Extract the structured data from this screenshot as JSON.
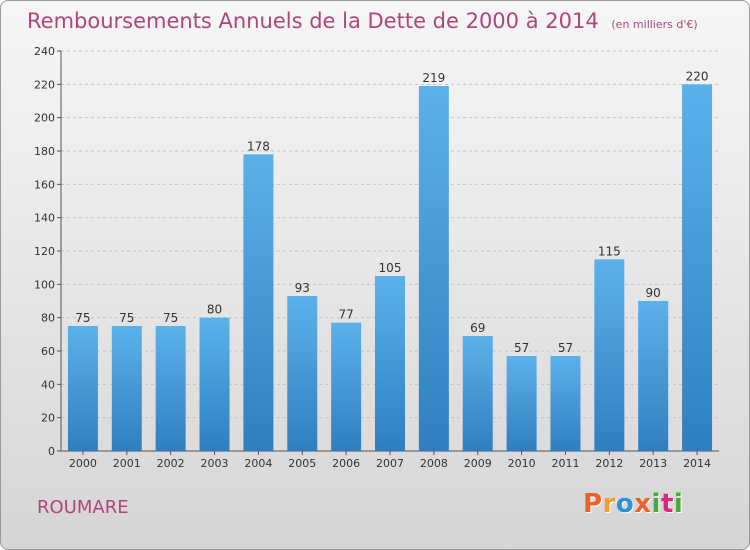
{
  "header": {
    "title": "Remboursements Annuels de la Dette de 2000 à 2014",
    "unit": "(en milliers d'€)"
  },
  "footer": {
    "location": "ROUMARE",
    "logo_text": "Proxiti"
  },
  "chart_data": {
    "type": "bar",
    "categories": [
      "2000",
      "2001",
      "2002",
      "2003",
      "2004",
      "2005",
      "2006",
      "2007",
      "2008",
      "2009",
      "2010",
      "2011",
      "2012",
      "2013",
      "2014"
    ],
    "values": [
      75,
      75,
      75,
      80,
      178,
      93,
      77,
      105,
      219,
      69,
      57,
      57,
      115,
      90,
      220
    ],
    "title": "Remboursements Annuels de la Dette de 2000 à 2014",
    "ylim": [
      0,
      240
    ],
    "yticks": [
      0,
      20,
      40,
      60,
      80,
      100,
      120,
      140,
      160,
      180,
      200,
      220,
      240
    ],
    "grid": true,
    "bar_color": "#3f95d8"
  },
  "colors": {
    "title": "#b0457a",
    "bar_top": "#5cb1ea",
    "bar_bottom": "#2f7fc0",
    "logo": [
      "#e8632b",
      "#f0a02a",
      "#2d8fd6",
      "#e8632b",
      "#4aa83c",
      "#d9287c",
      "#4aa83c"
    ]
  }
}
